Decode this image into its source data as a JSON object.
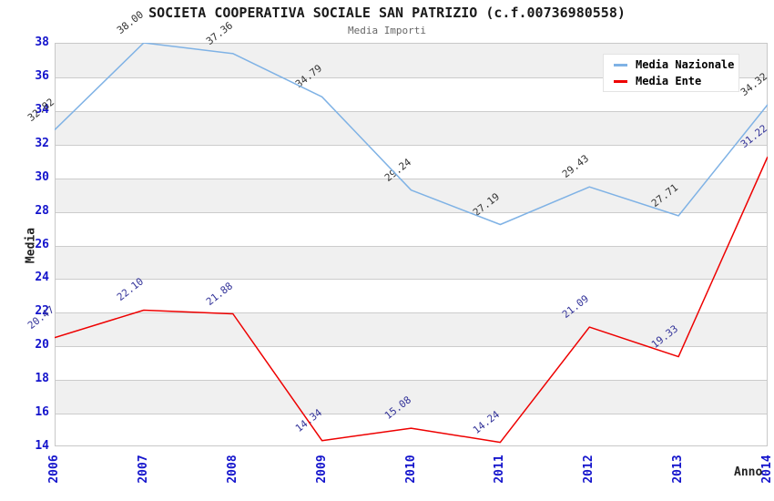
{
  "header": {
    "title": "SOCIETA COOPERATIVA SOCIALE SAN PATRIZIO (c.f.00736980558)",
    "subtitle": "Media Importi"
  },
  "chart_data": {
    "type": "line",
    "x": [
      2006,
      2007,
      2008,
      2009,
      2010,
      2011,
      2012,
      2013,
      2014
    ],
    "series": [
      {
        "name": "Media Nazionale",
        "color": "#7fb2e5",
        "label_color": "#333333",
        "values": [
          32.82,
          38.0,
          37.36,
          34.79,
          29.24,
          27.19,
          29.43,
          27.71,
          34.32
        ]
      },
      {
        "name": "Media Ente",
        "color": "#ee0000",
        "label_color": "#333399",
        "values": [
          20.47,
          22.1,
          21.88,
          14.34,
          15.08,
          14.24,
          21.09,
          19.33,
          31.22
        ]
      }
    ],
    "xlabel": "Anno",
    "ylabel": "Media",
    "ylim": [
      14,
      38
    ],
    "ytick_step": 2,
    "grid": true,
    "legend_position": "top-right",
    "style": {
      "band_color": "#f0f0f0",
      "grid_color": "#cccccc",
      "tick_text_color": "#1414cc",
      "title_color": "#1a1a1a",
      "subtitle_color": "#666666"
    }
  }
}
